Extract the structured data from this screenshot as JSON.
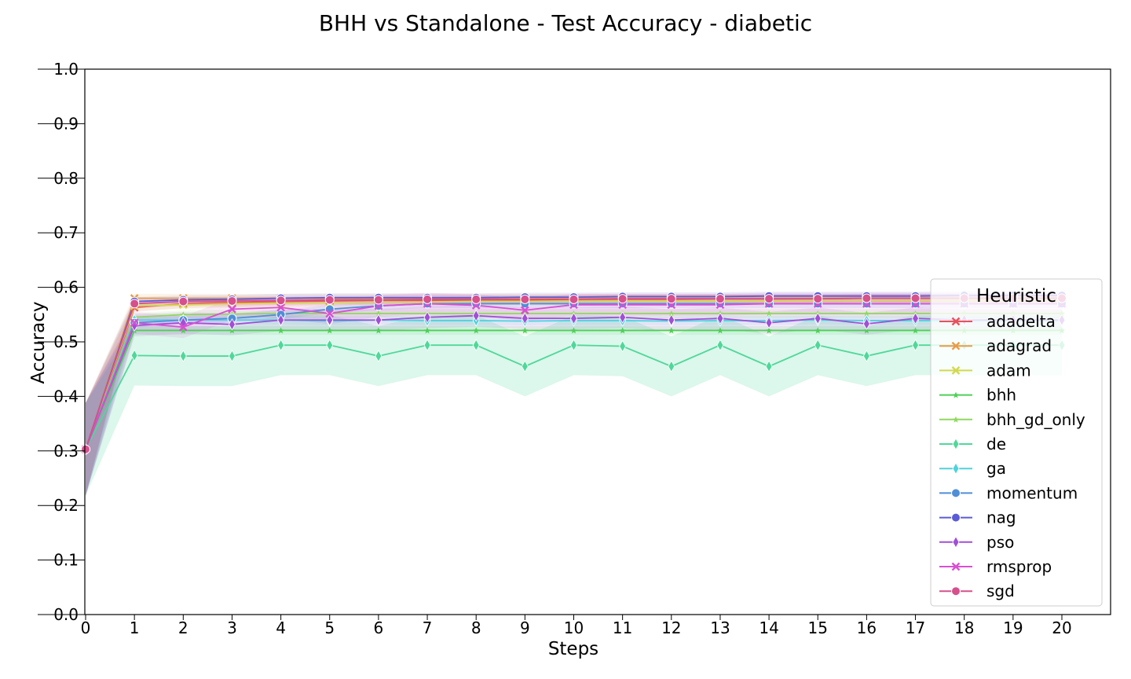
{
  "chart_data": {
    "type": "line",
    "title": "BHH vs Standalone - Test Accuracy - diabetic",
    "xlabel": "Steps",
    "ylabel": "Accuracy",
    "xlim": [
      0,
      20
    ],
    "ylim": [
      0.0,
      1.0
    ],
    "x": [
      0,
      1,
      2,
      3,
      4,
      5,
      6,
      7,
      8,
      9,
      10,
      11,
      12,
      13,
      14,
      15,
      16,
      17,
      18,
      19,
      20
    ],
    "x_ticks": [
      "0",
      "1",
      "2",
      "3",
      "4",
      "5",
      "6",
      "7",
      "8",
      "9",
      "10",
      "11",
      "12",
      "13",
      "14",
      "15",
      "16",
      "17",
      "18",
      "19",
      "20"
    ],
    "y_ticks": [
      "0.0",
      "0.1",
      "0.2",
      "0.3",
      "0.4",
      "0.5",
      "0.6",
      "0.7",
      "0.8",
      "0.9",
      "1.0"
    ],
    "grid": false,
    "legend_title": "Heuristic",
    "legend_position": "right",
    "series": [
      {
        "name": "adadelta",
        "color": "#e8525a",
        "marker": "x",
        "values": [
          0.303,
          0.563,
          0.57,
          0.572,
          0.574,
          0.575,
          0.576,
          0.576,
          0.577,
          0.577,
          0.578,
          0.578,
          0.578,
          0.579,
          0.579,
          0.579,
          0.58,
          0.58,
          0.58,
          0.58,
          0.58
        ]
      },
      {
        "name": "adagrad",
        "color": "#e99b47",
        "marker": "x",
        "values": [
          0.303,
          0.58,
          0.58,
          0.58,
          0.58,
          0.58,
          0.58,
          0.58,
          0.58,
          0.58,
          0.58,
          0.58,
          0.58,
          0.58,
          0.58,
          0.58,
          0.58,
          0.58,
          0.58,
          0.58,
          0.58
        ]
      },
      {
        "name": "adam",
        "color": "#d3d94f",
        "marker": "x",
        "values": [
          0.303,
          0.566,
          0.568,
          0.57,
          0.571,
          0.572,
          0.573,
          0.573,
          0.574,
          0.574,
          0.574,
          0.575,
          0.575,
          0.575,
          0.575,
          0.576,
          0.576,
          0.576,
          0.576,
          0.576,
          0.576
        ]
      },
      {
        "name": "bhh",
        "color": "#4fcf57",
        "marker": "star",
        "values": [
          0.303,
          0.521,
          0.521,
          0.521,
          0.521,
          0.521,
          0.521,
          0.521,
          0.521,
          0.521,
          0.521,
          0.521,
          0.521,
          0.521,
          0.521,
          0.521,
          0.521,
          0.521,
          0.521,
          0.521,
          0.521
        ]
      },
      {
        "name": "bhh_gd_only",
        "color": "#8fd85e",
        "marker": "star",
        "values": [
          0.303,
          0.545,
          0.55,
          0.551,
          0.552,
          0.552,
          0.552,
          0.552,
          0.552,
          0.552,
          0.552,
          0.552,
          0.552,
          0.552,
          0.552,
          0.552,
          0.552,
          0.552,
          0.552,
          0.552,
          0.552
        ]
      },
      {
        "name": "de",
        "color": "#4fd89a",
        "marker": "thin_diamond",
        "values": [
          0.303,
          0.475,
          0.474,
          0.474,
          0.494,
          0.494,
          0.474,
          0.494,
          0.494,
          0.455,
          0.494,
          0.492,
          0.455,
          0.494,
          0.455,
          0.494,
          0.474,
          0.494,
          0.494,
          0.494,
          0.494
        ]
      },
      {
        "name": "ga",
        "color": "#4fd3dc",
        "marker": "thin_diamond",
        "values": [
          0.303,
          0.54,
          0.54,
          0.54,
          0.54,
          0.538,
          0.54,
          0.539,
          0.539,
          0.538,
          0.539,
          0.539,
          0.538,
          0.539,
          0.539,
          0.54,
          0.539,
          0.539,
          0.539,
          0.539,
          0.539
        ]
      },
      {
        "name": "momentum",
        "color": "#4f8fd6",
        "marker": "circle",
        "values": [
          0.303,
          0.535,
          0.54,
          0.543,
          0.55,
          0.56,
          0.566,
          0.57,
          0.57,
          0.57,
          0.57,
          0.57,
          0.57,
          0.57,
          0.57,
          0.57,
          0.57,
          0.57,
          0.57,
          0.57,
          0.57
        ]
      },
      {
        "name": "nag",
        "color": "#5b5bd6",
        "marker": "circle",
        "values": [
          0.303,
          0.574,
          0.577,
          0.578,
          0.58,
          0.581,
          0.581,
          0.581,
          0.581,
          0.582,
          0.582,
          0.583,
          0.583,
          0.583,
          0.584,
          0.584,
          0.584,
          0.584,
          0.585,
          0.585,
          0.585
        ]
      },
      {
        "name": "pso",
        "color": "#a14fd6",
        "marker": "thin_diamond",
        "values": [
          0.303,
          0.53,
          0.535,
          0.532,
          0.54,
          0.54,
          0.54,
          0.545,
          0.548,
          0.543,
          0.543,
          0.545,
          0.54,
          0.543,
          0.535,
          0.543,
          0.533,
          0.543,
          0.54,
          0.54,
          0.54
        ]
      },
      {
        "name": "rmsprop",
        "color": "#d94fd3",
        "marker": "x",
        "values": [
          0.303,
          0.535,
          0.527,
          0.56,
          0.563,
          0.552,
          0.566,
          0.57,
          0.567,
          0.558,
          0.568,
          0.568,
          0.568,
          0.568,
          0.57,
          0.57,
          0.57,
          0.57,
          0.57,
          0.57,
          0.57
        ]
      },
      {
        "name": "sgd",
        "color": "#d6508c",
        "marker": "circle",
        "values": [
          0.303,
          0.57,
          0.574,
          0.575,
          0.576,
          0.577,
          0.577,
          0.578,
          0.578,
          0.578,
          0.578,
          0.579,
          0.579,
          0.579,
          0.579,
          0.579,
          0.58,
          0.58,
          0.58,
          0.58,
          0.58
        ]
      }
    ]
  }
}
